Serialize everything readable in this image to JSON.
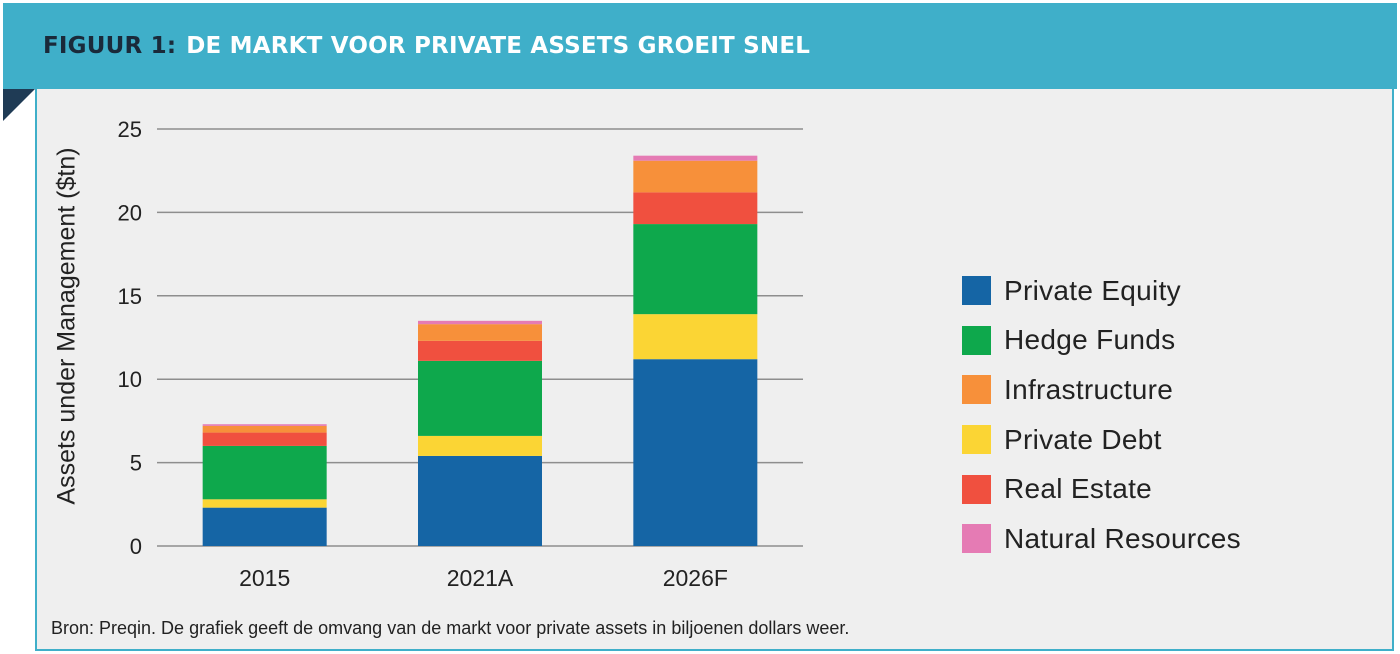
{
  "header": {
    "figure_label": "FIGUUR 1:",
    "title": "DE MARKT VOOR PRIVATE ASSETS GROEIT SNEL"
  },
  "source_note": "Bron: Preqin. De grafiek geeft de omvang van de markt voor private assets in biljoenen dollars weer.",
  "chart_data": {
    "type": "bar",
    "stacked": true,
    "categories": [
      "2015",
      "2021A",
      "2026F"
    ],
    "ylabel": "Assets under Management ($tn)",
    "xlabel": "",
    "ylim": [
      0,
      25
    ],
    "yticks": [
      0,
      5,
      10,
      15,
      20,
      25
    ],
    "grid": true,
    "legend_position": "right",
    "series": [
      {
        "name": "Private Equity",
        "color": "#1565a5",
        "values": [
          2.3,
          5.4,
          11.2
        ]
      },
      {
        "name": "Private Debt",
        "color": "#fbd534",
        "values": [
          0.5,
          1.2,
          2.7
        ]
      },
      {
        "name": "Hedge Funds",
        "color": "#0ea84c",
        "values": [
          3.2,
          4.5,
          5.4
        ]
      },
      {
        "name": "Real Estate",
        "color": "#f0503f",
        "values": [
          0.8,
          1.2,
          1.9
        ]
      },
      {
        "name": "Infrastructure",
        "color": "#f7903a",
        "values": [
          0.4,
          1.0,
          1.9
        ]
      },
      {
        "name": "Natural Resources",
        "color": "#e57bb4",
        "values": [
          0.1,
          0.2,
          0.3
        ]
      }
    ],
    "legend_order": [
      "Private Equity",
      "Hedge Funds",
      "Infrastructure",
      "Private Debt",
      "Real Estate",
      "Natural Resources"
    ]
  }
}
